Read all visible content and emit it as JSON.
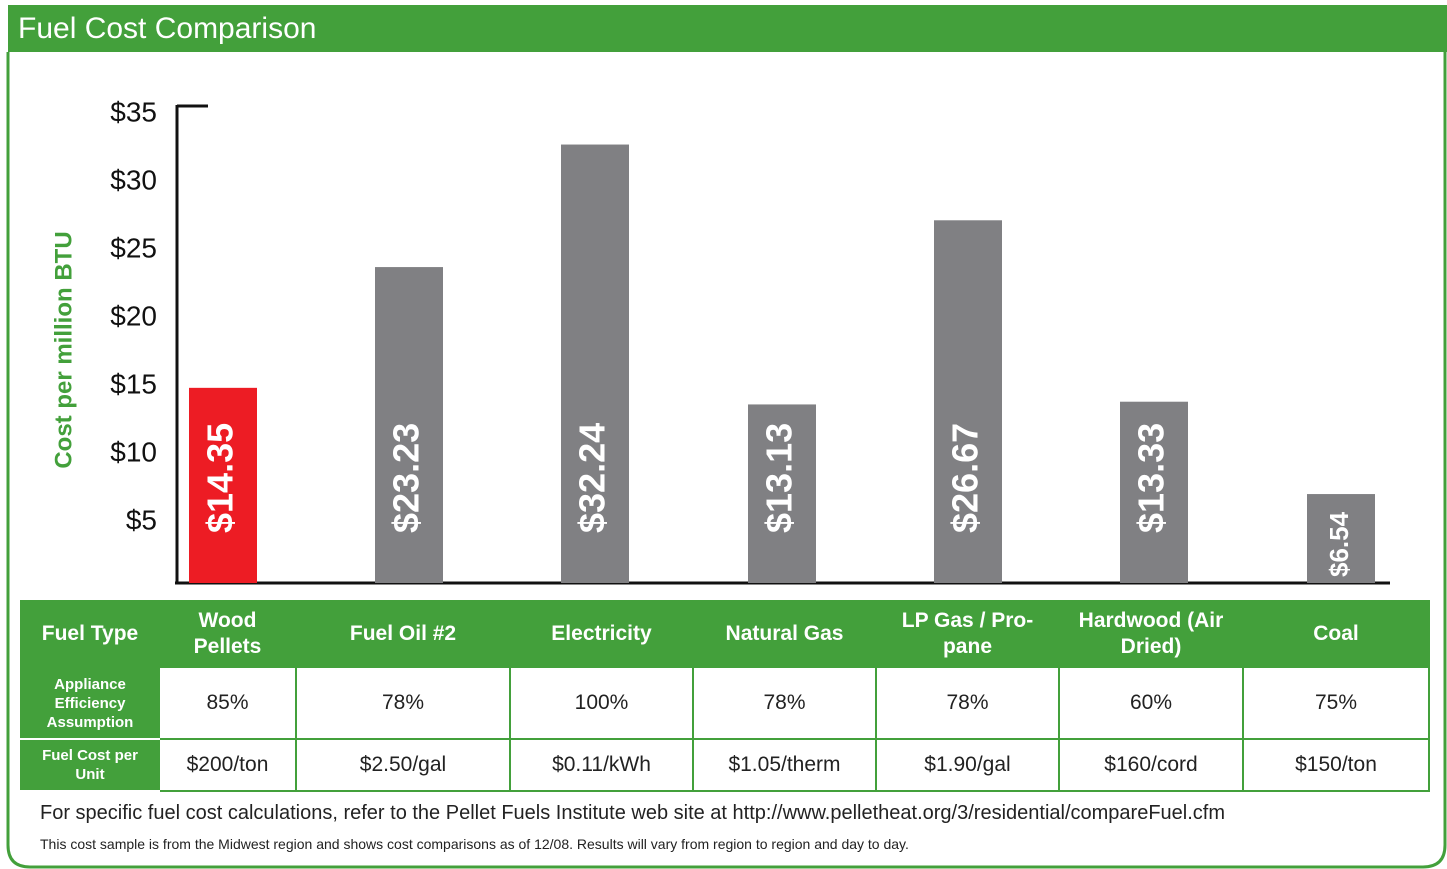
{
  "chart_data": {
    "type": "bar",
    "title": "Fuel Cost Comparison",
    "y_label": "Cost per million BTU",
    "categories": [
      "Wood Pellets",
      "Fuel Oil #2",
      "Electricity",
      "Natural Gas",
      "LP Gas / Pro-pane",
      "Hardwood (Air Dried)",
      "Coal"
    ],
    "values": [
      14.35,
      23.23,
      32.24,
      13.13,
      26.67,
      13.33,
      6.54
    ],
    "value_labels": [
      "$14.35",
      "$23.23",
      "$32.24",
      "$13.13",
      "$26.67",
      "$13.33",
      "$6.54"
    ],
    "colors": [
      "#ed1c24",
      "#808083",
      "#808083",
      "#808083",
      "#808083",
      "#808083",
      "#808083"
    ],
    "ylim": [
      0,
      35
    ],
    "yticks": [
      {
        "value": 5,
        "label": "$5"
      },
      {
        "value": 10,
        "label": "$10"
      },
      {
        "value": 15,
        "label": "$15"
      },
      {
        "value": 20,
        "label": "$20"
      },
      {
        "value": 25,
        "label": "$25"
      },
      {
        "value": 30,
        "label": "$30"
      },
      {
        "value": 35,
        "label": "$35"
      }
    ]
  },
  "table": {
    "header": "Fuel Type",
    "rows": [
      {
        "label": "Appliance Efficiency Assumption",
        "cells": [
          "85%",
          "78%",
          "100%",
          "78%",
          "78%",
          "60%",
          "75%"
        ]
      },
      {
        "label": "Fuel Cost per Unit",
        "cells": [
          "$200/ton",
          "$2.50/gal",
          "$0.11/kWh",
          "$1.05/therm",
          "$1.90/gal",
          "$160/cord",
          "$150/ton"
        ]
      }
    ]
  },
  "notes": [
    "For specific fuel cost calculations, refer to the Pellet Fuels Institute web site at http://www.pelletheat.org/3/residential/compareFuel.cfm",
    "This cost sample is from the Midwest region and shows cost comparisons as of 12/08. Results will vary from region to region and day to day."
  ]
}
